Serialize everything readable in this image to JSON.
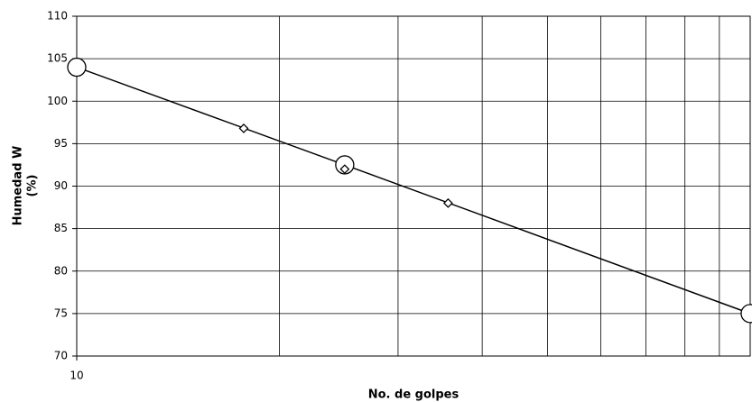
{
  "chart_data": {
    "type": "line",
    "x_label": "No. de golpes",
    "y_label": [
      "Humedad W",
      "(%)"
    ],
    "xlog": true,
    "xlim": [
      10,
      100
    ],
    "xticks": [
      10
    ],
    "xgrid": [
      20,
      30,
      40,
      50,
      60,
      70,
      80,
      90
    ],
    "ylim": [
      70,
      110
    ],
    "yticks": [
      70,
      75,
      80,
      85,
      90,
      95,
      100,
      105,
      110
    ],
    "grid": true,
    "series": [
      {
        "color": "#000000",
        "marker": "circle",
        "line": true,
        "x": [
          10,
          25,
          100
        ],
        "values": [
          104,
          92.5,
          75
        ]
      },
      {
        "color": "#000000",
        "marker": "diamond",
        "line": false,
        "x": [
          17.7,
          25,
          35.6
        ],
        "values": [
          96.8,
          92,
          88
        ]
      }
    ]
  }
}
